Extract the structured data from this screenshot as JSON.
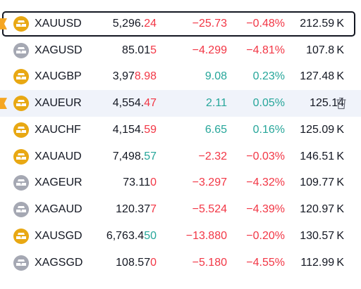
{
  "colors": {
    "up": "#26a69a",
    "down": "#f23645",
    "gold": "#e8a813",
    "silver": "#a5a8b3",
    "flag": "#f5a623"
  },
  "rows": [
    {
      "symbol": "XAUUSD",
      "metal": "gold",
      "last_a": "5,296.",
      "last_b": "24",
      "last_dir": "neg",
      "change": "−25.73",
      "change_pct": "−0.48%",
      "dir": "neg",
      "volume": "212.59 K",
      "flagged": true,
      "selected": true,
      "hovered": false
    },
    {
      "symbol": "XAGUSD",
      "metal": "silver",
      "last_a": "85.01",
      "last_b": "5",
      "last_dir": "neg",
      "change": "−4.299",
      "change_pct": "−4.81%",
      "dir": "neg",
      "volume": "107.8 K",
      "flagged": false,
      "selected": false,
      "hovered": false
    },
    {
      "symbol": "XAUGBP",
      "metal": "gold",
      "last_a": "3,97",
      "last_b": "8.98",
      "last_dir": "neg",
      "change": "9.08",
      "change_pct": "0.23%",
      "dir": "pos",
      "volume": "127.48 K",
      "flagged": false,
      "selected": false,
      "hovered": false
    },
    {
      "symbol": "XAUEUR",
      "metal": "gold",
      "last_a": "4,554.",
      "last_b": "47",
      "last_dir": "neg",
      "change": "2.11",
      "change_pct": "0.05%",
      "dir": "pos",
      "volume": "125.14",
      "flagged": true,
      "selected": false,
      "hovered": true
    },
    {
      "symbol": "XAUCHF",
      "metal": "gold",
      "last_a": "4,154.",
      "last_b": "59",
      "last_dir": "neg",
      "change": "6.65",
      "change_pct": "0.16%",
      "dir": "pos",
      "volume": "125.09 K",
      "flagged": false,
      "selected": false,
      "hovered": false
    },
    {
      "symbol": "XAUAUD",
      "metal": "gold",
      "last_a": "7,498.",
      "last_b": "57",
      "last_dir": "pos",
      "change": "−2.32",
      "change_pct": "−0.03%",
      "dir": "neg",
      "volume": "146.51 K",
      "flagged": false,
      "selected": false,
      "hovered": false
    },
    {
      "symbol": "XAGEUR",
      "metal": "silver",
      "last_a": "73.11",
      "last_b": "0",
      "last_dir": "neg",
      "change": "−3.297",
      "change_pct": "−4.32%",
      "dir": "neg",
      "volume": "109.77 K",
      "flagged": false,
      "selected": false,
      "hovered": false
    },
    {
      "symbol": "XAGAUD",
      "metal": "silver",
      "last_a": "120.37",
      "last_b": "7",
      "last_dir": "neg",
      "change": "−5.524",
      "change_pct": "−4.39%",
      "dir": "neg",
      "volume": "120.97 K",
      "flagged": false,
      "selected": false,
      "hovered": false
    },
    {
      "symbol": "XAUSGD",
      "metal": "gold",
      "last_a": "6,763.4",
      "last_b": "50",
      "last_dir": "pos",
      "change": "−13.880",
      "change_pct": "−0.20%",
      "dir": "neg",
      "volume": "130.57 K",
      "flagged": false,
      "selected": false,
      "hovered": false
    },
    {
      "symbol": "XAGSGD",
      "metal": "silver",
      "last_a": "108.57",
      "last_b": "0",
      "last_dir": "neg",
      "change": "−5.180",
      "change_pct": "−4.55%",
      "dir": "neg",
      "volume": "112.99 K",
      "flagged": false,
      "selected": false,
      "hovered": false
    }
  ],
  "icons": {
    "coin": "gold-bars-icon",
    "flag": "flag-icon",
    "delete": "trash-icon"
  }
}
